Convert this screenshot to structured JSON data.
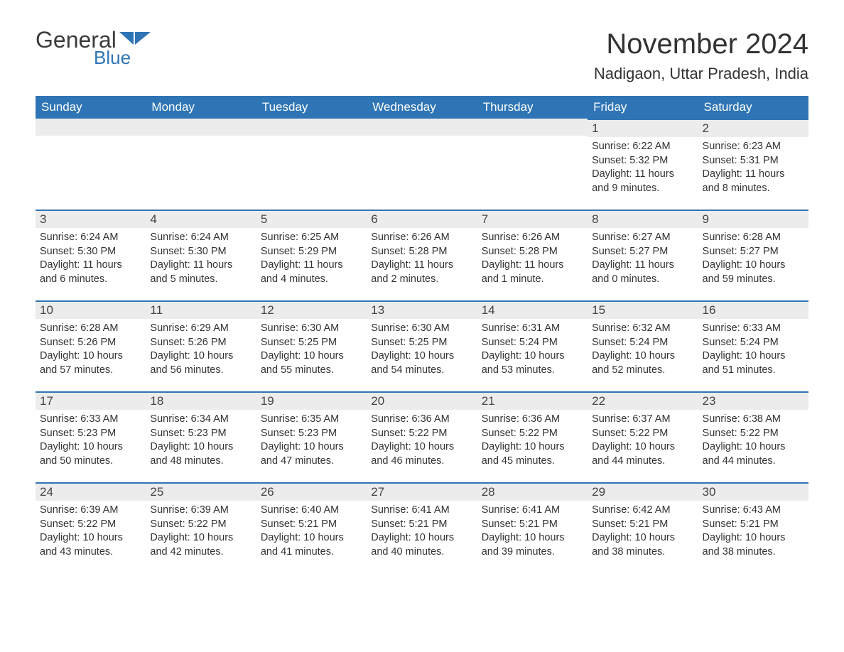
{
  "logo": {
    "word1": "General",
    "word2": "Blue",
    "flag_color": "#2f75b5"
  },
  "title": "November 2024",
  "location": "Nadigaon, Uttar Pradesh, India",
  "colors": {
    "header_bg": "#2f75b5",
    "header_text": "#ffffff",
    "daynum_bg": "#ececec",
    "row_divider": "#2f75b5",
    "body_text": "#333333",
    "page_bg": "#ffffff"
  },
  "typography": {
    "title_fontsize": 40,
    "location_fontsize": 22,
    "header_fontsize": 17,
    "daynum_fontsize": 17,
    "body_fontsize": 14.5,
    "font_family": "Arial"
  },
  "layout": {
    "columns": 7,
    "rows": 5,
    "first_weekday_index": 5
  },
  "weekdays": [
    "Sunday",
    "Monday",
    "Tuesday",
    "Wednesday",
    "Thursday",
    "Friday",
    "Saturday"
  ],
  "days": [
    {
      "n": 1,
      "sunrise": "6:22 AM",
      "sunset": "5:32 PM",
      "daylight": "11 hours and 9 minutes."
    },
    {
      "n": 2,
      "sunrise": "6:23 AM",
      "sunset": "5:31 PM",
      "daylight": "11 hours and 8 minutes."
    },
    {
      "n": 3,
      "sunrise": "6:24 AM",
      "sunset": "5:30 PM",
      "daylight": "11 hours and 6 minutes."
    },
    {
      "n": 4,
      "sunrise": "6:24 AM",
      "sunset": "5:30 PM",
      "daylight": "11 hours and 5 minutes."
    },
    {
      "n": 5,
      "sunrise": "6:25 AM",
      "sunset": "5:29 PM",
      "daylight": "11 hours and 4 minutes."
    },
    {
      "n": 6,
      "sunrise": "6:26 AM",
      "sunset": "5:28 PM",
      "daylight": "11 hours and 2 minutes."
    },
    {
      "n": 7,
      "sunrise": "6:26 AM",
      "sunset": "5:28 PM",
      "daylight": "11 hours and 1 minute."
    },
    {
      "n": 8,
      "sunrise": "6:27 AM",
      "sunset": "5:27 PM",
      "daylight": "11 hours and 0 minutes."
    },
    {
      "n": 9,
      "sunrise": "6:28 AM",
      "sunset": "5:27 PM",
      "daylight": "10 hours and 59 minutes."
    },
    {
      "n": 10,
      "sunrise": "6:28 AM",
      "sunset": "5:26 PM",
      "daylight": "10 hours and 57 minutes."
    },
    {
      "n": 11,
      "sunrise": "6:29 AM",
      "sunset": "5:26 PM",
      "daylight": "10 hours and 56 minutes."
    },
    {
      "n": 12,
      "sunrise": "6:30 AM",
      "sunset": "5:25 PM",
      "daylight": "10 hours and 55 minutes."
    },
    {
      "n": 13,
      "sunrise": "6:30 AM",
      "sunset": "5:25 PM",
      "daylight": "10 hours and 54 minutes."
    },
    {
      "n": 14,
      "sunrise": "6:31 AM",
      "sunset": "5:24 PM",
      "daylight": "10 hours and 53 minutes."
    },
    {
      "n": 15,
      "sunrise": "6:32 AM",
      "sunset": "5:24 PM",
      "daylight": "10 hours and 52 minutes."
    },
    {
      "n": 16,
      "sunrise": "6:33 AM",
      "sunset": "5:24 PM",
      "daylight": "10 hours and 51 minutes."
    },
    {
      "n": 17,
      "sunrise": "6:33 AM",
      "sunset": "5:23 PM",
      "daylight": "10 hours and 50 minutes."
    },
    {
      "n": 18,
      "sunrise": "6:34 AM",
      "sunset": "5:23 PM",
      "daylight": "10 hours and 48 minutes."
    },
    {
      "n": 19,
      "sunrise": "6:35 AM",
      "sunset": "5:23 PM",
      "daylight": "10 hours and 47 minutes."
    },
    {
      "n": 20,
      "sunrise": "6:36 AM",
      "sunset": "5:22 PM",
      "daylight": "10 hours and 46 minutes."
    },
    {
      "n": 21,
      "sunrise": "6:36 AM",
      "sunset": "5:22 PM",
      "daylight": "10 hours and 45 minutes."
    },
    {
      "n": 22,
      "sunrise": "6:37 AM",
      "sunset": "5:22 PM",
      "daylight": "10 hours and 44 minutes."
    },
    {
      "n": 23,
      "sunrise": "6:38 AM",
      "sunset": "5:22 PM",
      "daylight": "10 hours and 44 minutes."
    },
    {
      "n": 24,
      "sunrise": "6:39 AM",
      "sunset": "5:22 PM",
      "daylight": "10 hours and 43 minutes."
    },
    {
      "n": 25,
      "sunrise": "6:39 AM",
      "sunset": "5:22 PM",
      "daylight": "10 hours and 42 minutes."
    },
    {
      "n": 26,
      "sunrise": "6:40 AM",
      "sunset": "5:21 PM",
      "daylight": "10 hours and 41 minutes."
    },
    {
      "n": 27,
      "sunrise": "6:41 AM",
      "sunset": "5:21 PM",
      "daylight": "10 hours and 40 minutes."
    },
    {
      "n": 28,
      "sunrise": "6:41 AM",
      "sunset": "5:21 PM",
      "daylight": "10 hours and 39 minutes."
    },
    {
      "n": 29,
      "sunrise": "6:42 AM",
      "sunset": "5:21 PM",
      "daylight": "10 hours and 38 minutes."
    },
    {
      "n": 30,
      "sunrise": "6:43 AM",
      "sunset": "5:21 PM",
      "daylight": "10 hours and 38 minutes."
    }
  ],
  "labels": {
    "sunrise": "Sunrise:",
    "sunset": "Sunset:",
    "daylight": "Daylight:"
  }
}
